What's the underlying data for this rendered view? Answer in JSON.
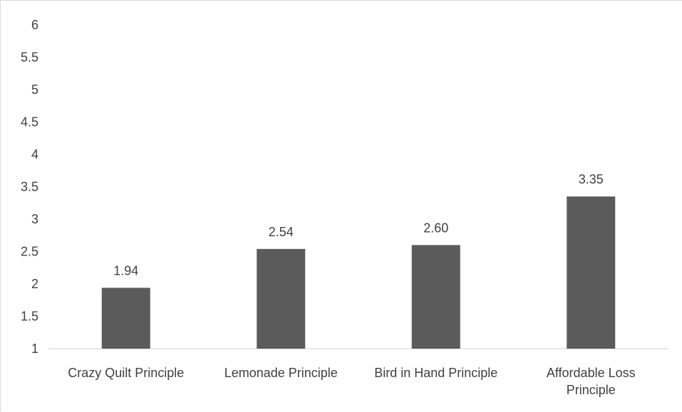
{
  "chart_data": {
    "type": "bar",
    "categories": [
      "Crazy Quilt Principle",
      "Lemonade Principle",
      "Bird in Hand Principle",
      "Affordable Loss Principle"
    ],
    "category_label_lines": [
      [
        "Crazy Quilt Principle"
      ],
      [
        "Lemonade Principle"
      ],
      [
        "Bird in Hand Principle"
      ],
      [
        "Affordable Loss",
        "Principle"
      ]
    ],
    "values": [
      1.94,
      2.54,
      2.6,
      3.35
    ],
    "data_labels": [
      "1.94",
      "2.54",
      "2.60",
      "3.35"
    ],
    "y_ticks": [
      "1",
      "1.5",
      "2",
      "2.5",
      "3",
      "3.5",
      "4",
      "4.5",
      "5",
      "5.5",
      "6"
    ],
    "ylim": [
      1,
      6
    ],
    "title": "",
    "xlabel": "",
    "ylabel": "",
    "grid": false,
    "legend": "none",
    "colors": {
      "bar": "#5b5b5b",
      "axis": "#d9d9d9",
      "text": "#404040"
    }
  }
}
